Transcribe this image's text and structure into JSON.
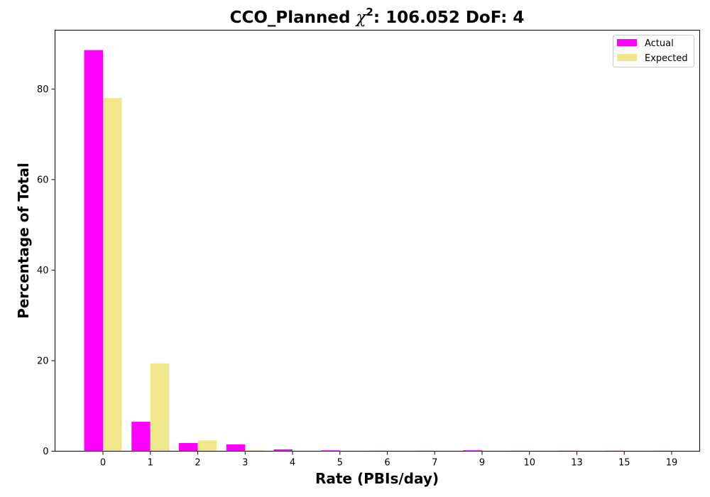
{
  "chart_data": {
    "type": "bar",
    "title_prefix": "CCO_Planned ",
    "title_chi": "χ",
    "title_sup": "2",
    "title_suffix": ": 106.052 DoF: 4",
    "xlabel": "Rate (PBIs/day)",
    "ylabel": "Percentage of Total",
    "categories": [
      "0",
      "1",
      "2",
      "3",
      "4",
      "5",
      "6",
      "7",
      "9",
      "10",
      "13",
      "15",
      "19"
    ],
    "series": [
      {
        "name": "Actual",
        "color": "#ff00ff",
        "values": [
          88.6,
          6.5,
          1.8,
          1.5,
          0.4,
          0.2,
          0.1,
          0.1,
          0.2,
          0.1,
          0.1,
          0.1,
          0.1
        ]
      },
      {
        "name": "Expected",
        "color": "#f0e68c",
        "values": [
          78.0,
          19.4,
          2.4,
          0.2,
          0.02,
          0.0,
          0.0,
          0.0,
          0.0,
          0.0,
          0.0,
          0.0,
          0.0
        ]
      }
    ],
    "ylim": [
      0,
      93
    ],
    "yticks": [
      0,
      20,
      40,
      60,
      80
    ],
    "grid": false,
    "legend": "top-right"
  }
}
